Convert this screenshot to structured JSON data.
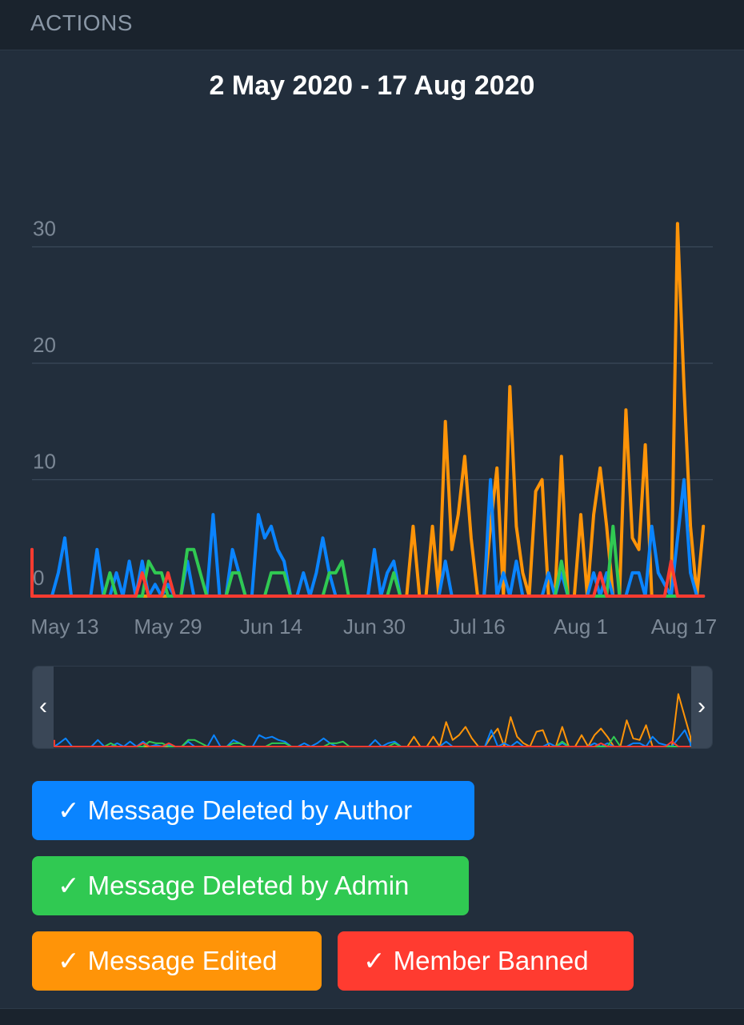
{
  "header": {
    "title": "ACTIONS"
  },
  "chart_data": {
    "type": "line",
    "title": "2 May 2020 - 17 Aug 2020",
    "x_ticks": [
      "May 13",
      "May 29",
      "Jun 14",
      "Jun 30",
      "Jul 16",
      "Aug 1",
      "Aug 17"
    ],
    "y_ticks": [
      "0",
      "10",
      "20",
      "30"
    ],
    "ylim": [
      0,
      32
    ],
    "grid": true,
    "legend_placement": "bottom",
    "series": [
      {
        "name": "Message Deleted by Author",
        "color": "#0a84ff",
        "points": [
          [
            "2020-05-02",
            0
          ],
          [
            "2020-05-07",
            0
          ],
          [
            "2020-05-11",
            0
          ],
          [
            "2020-05-12",
            2
          ],
          [
            "2020-05-13",
            5
          ],
          [
            "2020-05-14",
            0
          ],
          [
            "2020-05-17",
            0
          ],
          [
            "2020-05-18",
            4
          ],
          [
            "2020-05-19",
            0
          ],
          [
            "2020-05-20",
            0
          ],
          [
            "2020-05-21",
            2
          ],
          [
            "2020-05-22",
            0
          ],
          [
            "2020-05-23",
            3
          ],
          [
            "2020-05-24",
            0
          ],
          [
            "2020-05-25",
            3
          ],
          [
            "2020-05-26",
            0
          ],
          [
            "2020-05-27",
            1
          ],
          [
            "2020-05-28",
            0
          ],
          [
            "2020-05-29",
            1
          ],
          [
            "2020-05-30",
            0
          ],
          [
            "2020-05-31",
            0
          ],
          [
            "2020-06-01",
            3
          ],
          [
            "2020-06-02",
            0
          ],
          [
            "2020-06-04",
            0
          ],
          [
            "2020-06-05",
            7
          ],
          [
            "2020-06-06",
            0
          ],
          [
            "2020-06-07",
            0
          ],
          [
            "2020-06-08",
            4
          ],
          [
            "2020-06-09",
            2
          ],
          [
            "2020-06-10",
            0
          ],
          [
            "2020-06-11",
            0
          ],
          [
            "2020-06-12",
            7
          ],
          [
            "2020-06-13",
            5
          ],
          [
            "2020-06-14",
            6
          ],
          [
            "2020-06-15",
            4
          ],
          [
            "2020-06-16",
            3
          ],
          [
            "2020-06-17",
            0
          ],
          [
            "2020-06-18",
            0
          ],
          [
            "2020-06-19",
            2
          ],
          [
            "2020-06-20",
            0
          ],
          [
            "2020-06-21",
            2
          ],
          [
            "2020-06-22",
            5
          ],
          [
            "2020-06-23",
            2
          ],
          [
            "2020-06-24",
            0
          ],
          [
            "2020-06-26",
            0
          ],
          [
            "2020-06-29",
            0
          ],
          [
            "2020-06-30",
            4
          ],
          [
            "2020-07-01",
            0
          ],
          [
            "2020-07-02",
            2
          ],
          [
            "2020-07-03",
            3
          ],
          [
            "2020-07-04",
            0
          ],
          [
            "2020-07-05",
            0
          ],
          [
            "2020-07-10",
            0
          ],
          [
            "2020-07-11",
            3
          ],
          [
            "2020-07-12",
            0
          ],
          [
            "2020-07-17",
            0
          ],
          [
            "2020-07-18",
            10
          ],
          [
            "2020-07-19",
            0
          ],
          [
            "2020-07-20",
            2
          ],
          [
            "2020-07-21",
            0
          ],
          [
            "2020-07-22",
            3
          ],
          [
            "2020-07-23",
            0
          ],
          [
            "2020-07-26",
            0
          ],
          [
            "2020-07-27",
            2
          ],
          [
            "2020-07-28",
            0
          ],
          [
            "2020-07-29",
            2
          ],
          [
            "2020-07-30",
            0
          ],
          [
            "2020-08-02",
            0
          ],
          [
            "2020-08-03",
            2
          ],
          [
            "2020-08-04",
            0
          ],
          [
            "2020-08-05",
            2
          ],
          [
            "2020-08-06",
            0
          ],
          [
            "2020-08-08",
            0
          ],
          [
            "2020-08-09",
            2
          ],
          [
            "2020-08-10",
            2
          ],
          [
            "2020-08-11",
            0
          ],
          [
            "2020-08-12",
            6
          ],
          [
            "2020-08-13",
            2
          ],
          [
            "2020-08-14",
            1
          ],
          [
            "2020-08-15",
            0
          ],
          [
            "2020-08-17",
            10
          ],
          [
            "2020-08-18",
            2
          ],
          [
            "2020-08-19",
            0
          ],
          [
            "2020-08-20",
            0
          ]
        ]
      },
      {
        "name": "Message Deleted by Admin",
        "color": "#30c952",
        "points": [
          [
            "2020-05-02",
            0
          ],
          [
            "2020-05-19",
            0
          ],
          [
            "2020-05-20",
            2
          ],
          [
            "2020-05-21",
            0
          ],
          [
            "2020-05-25",
            0
          ],
          [
            "2020-05-26",
            3
          ],
          [
            "2020-05-27",
            2
          ],
          [
            "2020-05-28",
            2
          ],
          [
            "2020-05-29",
            0
          ],
          [
            "2020-05-31",
            0
          ],
          [
            "2020-06-01",
            4
          ],
          [
            "2020-06-02",
            4
          ],
          [
            "2020-06-03",
            2
          ],
          [
            "2020-06-04",
            0
          ],
          [
            "2020-06-07",
            0
          ],
          [
            "2020-06-08",
            2
          ],
          [
            "2020-06-09",
            2
          ],
          [
            "2020-06-10",
            0
          ],
          [
            "2020-06-12",
            0
          ],
          [
            "2020-06-13",
            0
          ],
          [
            "2020-06-14",
            2
          ],
          [
            "2020-06-15",
            2
          ],
          [
            "2020-06-16",
            2
          ],
          [
            "2020-06-17",
            0
          ],
          [
            "2020-06-22",
            0
          ],
          [
            "2020-06-23",
            2
          ],
          [
            "2020-06-24",
            2
          ],
          [
            "2020-06-25",
            3
          ],
          [
            "2020-06-26",
            0
          ],
          [
            "2020-07-02",
            0
          ],
          [
            "2020-07-03",
            2
          ],
          [
            "2020-07-04",
            0
          ],
          [
            "2020-07-28",
            0
          ],
          [
            "2020-07-29",
            3
          ],
          [
            "2020-07-30",
            0
          ],
          [
            "2020-08-05",
            0
          ],
          [
            "2020-08-06",
            6
          ],
          [
            "2020-08-07",
            0
          ],
          [
            "2020-08-20",
            0
          ]
        ]
      },
      {
        "name": "Message Edited",
        "color": "#ff9408",
        "points": [
          [
            "2020-05-02",
            0
          ],
          [
            "2020-07-05",
            0
          ],
          [
            "2020-07-06",
            6
          ],
          [
            "2020-07-07",
            0
          ],
          [
            "2020-07-08",
            0
          ],
          [
            "2020-07-09",
            6
          ],
          [
            "2020-07-10",
            0
          ],
          [
            "2020-07-11",
            15
          ],
          [
            "2020-07-12",
            4
          ],
          [
            "2020-07-13",
            7
          ],
          [
            "2020-07-14",
            12
          ],
          [
            "2020-07-15",
            5
          ],
          [
            "2020-07-16",
            0
          ],
          [
            "2020-07-17",
            0
          ],
          [
            "2020-07-18",
            6
          ],
          [
            "2020-07-19",
            11
          ],
          [
            "2020-07-20",
            0
          ],
          [
            "2020-07-21",
            18
          ],
          [
            "2020-07-22",
            6
          ],
          [
            "2020-07-23",
            2
          ],
          [
            "2020-07-24",
            0
          ],
          [
            "2020-07-25",
            9
          ],
          [
            "2020-07-26",
            10
          ],
          [
            "2020-07-27",
            0
          ],
          [
            "2020-07-28",
            0
          ],
          [
            "2020-07-29",
            12
          ],
          [
            "2020-07-30",
            0
          ],
          [
            "2020-07-31",
            0
          ],
          [
            "2020-08-01",
            7
          ],
          [
            "2020-08-02",
            0
          ],
          [
            "2020-08-03",
            7
          ],
          [
            "2020-08-04",
            11
          ],
          [
            "2020-08-05",
            6
          ],
          [
            "2020-08-06",
            0
          ],
          [
            "2020-08-07",
            0
          ],
          [
            "2020-08-08",
            16
          ],
          [
            "2020-08-09",
            5
          ],
          [
            "2020-08-10",
            4
          ],
          [
            "2020-08-11",
            13
          ],
          [
            "2020-08-12",
            0
          ],
          [
            "2020-08-13",
            0
          ],
          [
            "2020-08-14",
            0
          ],
          [
            "2020-08-15",
            0
          ],
          [
            "2020-08-16",
            32
          ],
          [
            "2020-08-17",
            18
          ],
          [
            "2020-08-18",
            6
          ],
          [
            "2020-08-19",
            0
          ],
          [
            "2020-08-20",
            6
          ]
        ]
      },
      {
        "name": "Member Banned",
        "color": "#ff3b30",
        "points": [
          [
            "2020-05-02",
            4
          ],
          [
            "2020-05-03",
            0
          ],
          [
            "2020-05-05",
            0
          ],
          [
            "2020-05-06",
            2
          ],
          [
            "2020-05-07",
            0
          ],
          [
            "2020-05-24",
            0
          ],
          [
            "2020-05-25",
            2
          ],
          [
            "2020-05-26",
            0
          ],
          [
            "2020-05-28",
            0
          ],
          [
            "2020-05-29",
            2
          ],
          [
            "2020-05-30",
            0
          ],
          [
            "2020-08-03",
            0
          ],
          [
            "2020-08-04",
            2
          ],
          [
            "2020-08-05",
            0
          ],
          [
            "2020-08-14",
            0
          ],
          [
            "2020-08-15",
            3
          ],
          [
            "2020-08-16",
            0
          ],
          [
            "2020-08-20",
            0
          ]
        ]
      }
    ]
  },
  "navigator": {
    "left_arrow": "‹",
    "right_arrow": "›"
  },
  "legend": {
    "check": "✓",
    "items": [
      {
        "label": "Message Deleted by Author",
        "color": "#0a84ff"
      },
      {
        "label": "Message Deleted by Admin",
        "color": "#30c952"
      },
      {
        "label": "Message Edited",
        "color": "#ff9408"
      },
      {
        "label": "Member Banned",
        "color": "#ff3b30"
      }
    ]
  }
}
